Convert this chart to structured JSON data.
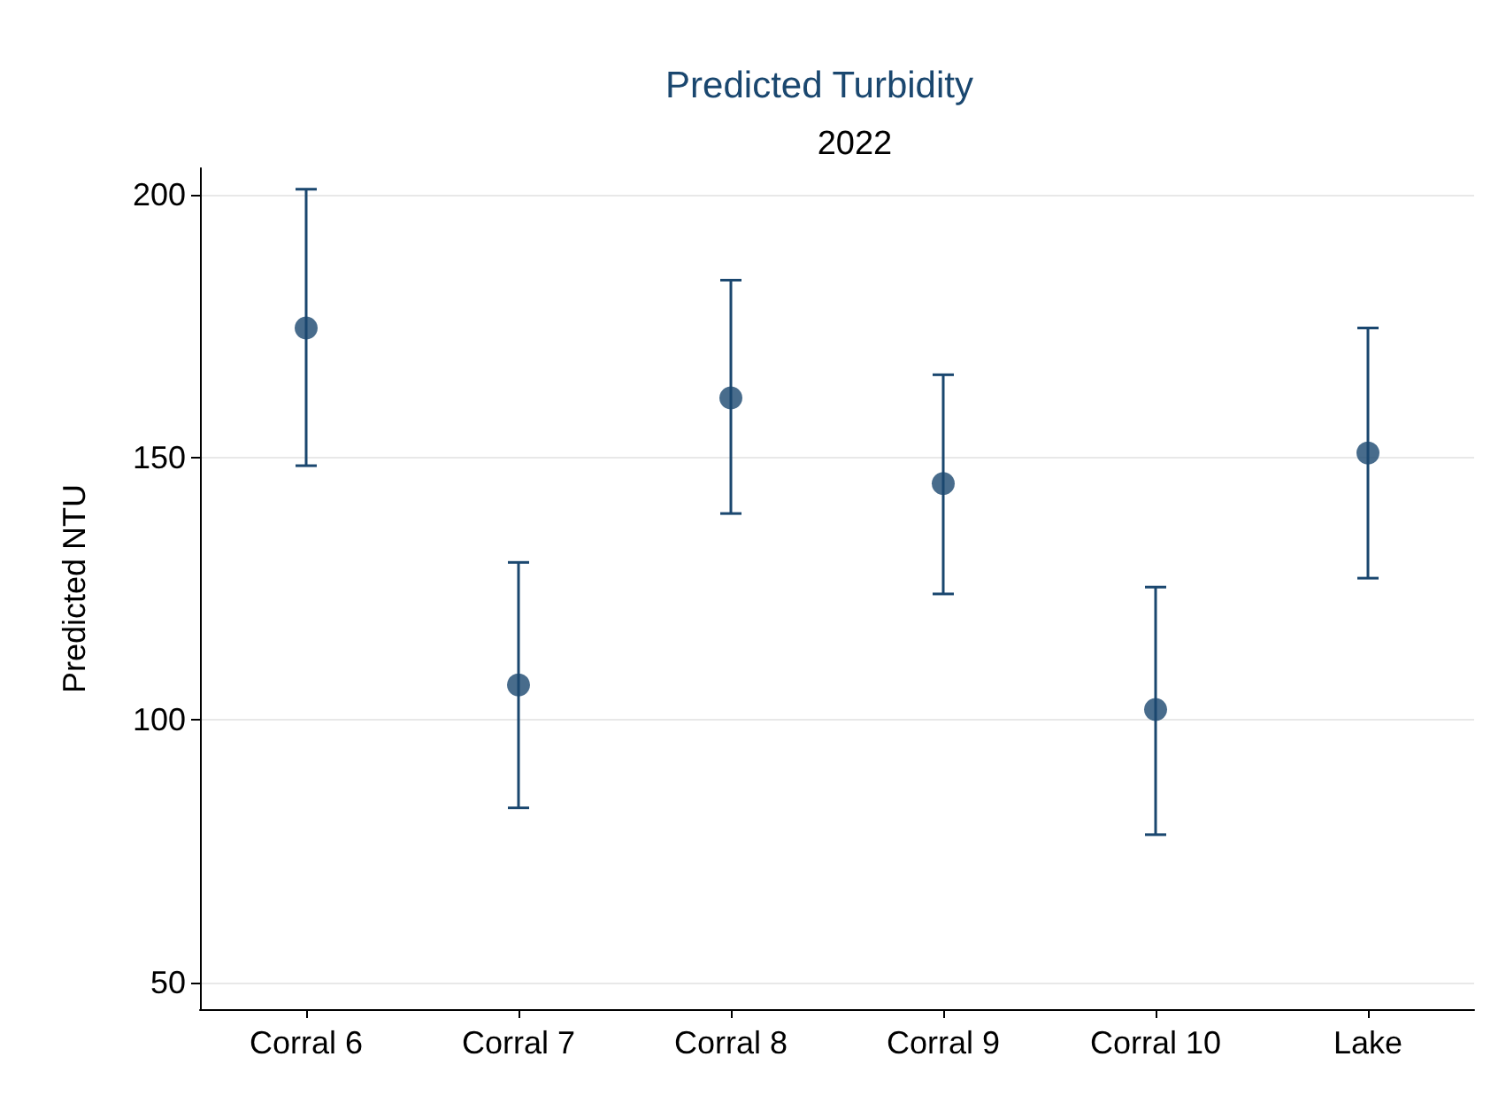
{
  "chart_data": {
    "type": "scatter",
    "title": "Predicted Turbidity",
    "subtitle": "2022",
    "ylabel": "Predicted NTU",
    "categories": [
      "Corral 6",
      "Corral 7",
      "Corral 8",
      "Corral 9",
      "Corral 10",
      "Lake"
    ],
    "series": [
      {
        "color": "#1a476f",
        "values": [
          174.6,
          106.7,
          161.3,
          145,
          102,
          150.8
        ],
        "errors": [
          [
            148.4,
            201
          ],
          [
            83.3,
            130
          ],
          [
            139.3,
            183.7
          ],
          [
            124,
            165.7
          ],
          [
            78.2,
            125.3
          ],
          [
            127,
            174.6
          ]
        ]
      }
    ],
    "ylim": [
      45,
      205
    ],
    "yticks": [
      50,
      100,
      150,
      200
    ],
    "grid": "y",
    "marker": "circle"
  }
}
